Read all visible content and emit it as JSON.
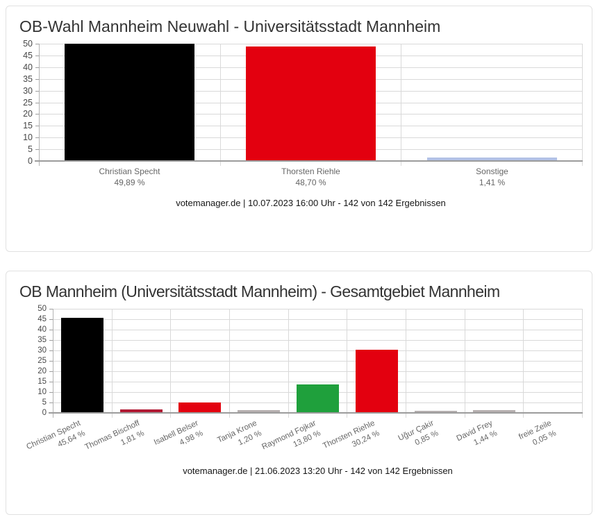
{
  "chart_data": [
    {
      "type": "bar",
      "title": "OB-Wahl Mannheim Neuwahl - Universitätsstadt Mannheim",
      "categories": [
        "Christian Specht",
        "Thorsten Riehle",
        "Sonstige"
      ],
      "values": [
        49.89,
        48.7,
        1.41
      ],
      "value_labels": [
        "49,89 %",
        "48,70 %",
        "1,41 %"
      ],
      "colors": [
        "#000000",
        "#e3000f",
        "#b2c1e6"
      ],
      "ylim": [
        0,
        50
      ],
      "yticks": [
        0,
        5,
        10,
        15,
        20,
        25,
        30,
        35,
        40,
        45,
        50
      ],
      "grid": true,
      "rotated_x_labels": false,
      "legend": "none",
      "caption": "votemanager.de | 10.07.2023 16:00 Uhr - 142 von 142 Ergebnissen"
    },
    {
      "type": "bar",
      "title": "OB Mannheim (Universitätsstadt Mannheim) - Gesamtgebiet Mannheim",
      "categories": [
        "Christian Specht",
        "Thomas Bischoff",
        "Isabell Belser",
        "Tanja Krone",
        "Raymond Fojkar",
        "Thorsten Riehle",
        "Uğur Çakir",
        "David Frey",
        "freie Zeile"
      ],
      "values": [
        45.64,
        1.81,
        4.98,
        1.2,
        13.8,
        30.24,
        0.85,
        1.44,
        0.05
      ],
      "value_labels": [
        "45,64 %",
        "1,81 %",
        "4,98 %",
        "1,20 %",
        "13,80 %",
        "30,24 %",
        "0,85 %",
        "1,44 %",
        "0,05 %"
      ],
      "colors": [
        "#000000",
        "#b01933",
        "#e3000f",
        "#b5afaf",
        "#1fa03c",
        "#e3000f",
        "#b5afaf",
        "#b5afaf",
        "#b5afaf"
      ],
      "ylim": [
        0,
        50
      ],
      "yticks": [
        0,
        5,
        10,
        15,
        20,
        25,
        30,
        35,
        40,
        45,
        50
      ],
      "grid": true,
      "rotated_x_labels": true,
      "legend": "none",
      "caption": "votemanager.de | 21.06.2023 13:20 Uhr - 142 von 142 Ergebnissen"
    }
  ],
  "ui": {
    "grid_color": "#d9d9d9",
    "axis_color": "#9c9c9c",
    "label_color": "#666666",
    "title_color": "#333333"
  }
}
